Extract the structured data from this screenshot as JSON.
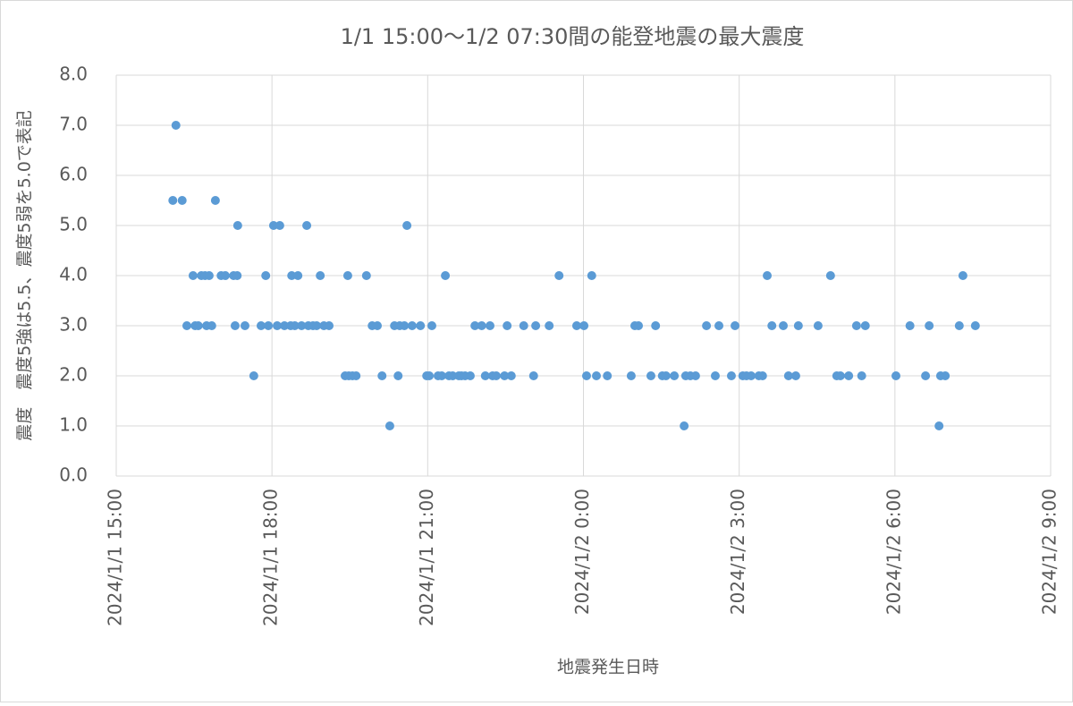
{
  "chart_data": {
    "type": "scatter",
    "title": "1/1 15:00～1/2 07:30間の能登地震の最大震度",
    "x_label": "地震発生日時",
    "y_label": "震度　震度5強は5.5、震度5弱を5.0で表記",
    "color": "#5b9bd5",
    "grid": true,
    "x": [
      16.09,
      16.15,
      16.27,
      16.36,
      16.48,
      16.52,
      16.58,
      16.64,
      16.71,
      16.74,
      16.79,
      16.84,
      16.91,
      17.02,
      17.1,
      17.26,
      17.29,
      17.33,
      17.34,
      17.48,
      17.65,
      17.79,
      17.88,
      17.93,
      18.03,
      18.1,
      18.15,
      18.24,
      18.36,
      18.38,
      18.44,
      18.5,
      18.57,
      18.67,
      18.7,
      18.79,
      18.86,
      18.93,
      19.0,
      19.1,
      19.41,
      19.46,
      19.48,
      19.55,
      19.62,
      19.82,
      19.93,
      20.03,
      20.12,
      20.27,
      20.36,
      20.43,
      20.46,
      20.55,
      20.6,
      20.7,
      20.86,
      20.98,
      21.03,
      21.08,
      21.2,
      21.27,
      21.34,
      21.41,
      21.48,
      21.6,
      21.65,
      21.72,
      21.82,
      21.91,
      22.04,
      22.11,
      22.2,
      22.25,
      22.32,
      22.48,
      22.53,
      22.61,
      22.85,
      23.04,
      23.08,
      23.34,
      23.53,
      23.87,
      24.01,
      24.06,
      24.16,
      24.25,
      24.46,
      24.92,
      24.99,
      25.06,
      25.3,
      25.39,
      25.52,
      25.59,
      25.75,
      25.94,
      25.97,
      26.06,
      26.16,
      26.37,
      26.54,
      26.61,
      26.85,
      26.92,
      27.07,
      27.14,
      27.23,
      27.38,
      27.45,
      27.54,
      27.63,
      27.85,
      27.95,
      28.09,
      28.14,
      28.52,
      28.76,
      28.88,
      28.95,
      29.11,
      29.26,
      29.36,
      29.43,
      30.02,
      30.29,
      30.59,
      30.66,
      30.85,
      30.88,
      30.97,
      31.24,
      31.31,
      31.55
    ],
    "values": [
      5.5,
      7,
      5.5,
      3,
      4,
      3,
      3,
      4,
      4,
      3,
      4,
      3,
      5.5,
      4,
      4,
      4,
      3,
      4,
      5,
      3,
      2,
      3,
      4,
      3,
      5,
      3,
      5,
      3,
      3,
      4,
      3,
      4,
      3,
      5,
      3,
      3,
      3,
      4,
      3,
      3,
      2,
      4,
      2,
      2,
      2,
      4,
      3,
      3,
      2,
      1,
      3,
      2,
      3,
      3,
      5,
      3,
      3,
      2,
      2,
      3,
      2,
      2,
      4,
      2,
      2,
      2,
      2,
      2,
      2,
      3,
      3,
      2,
      3,
      2,
      2,
      2,
      3,
      2,
      3,
      2,
      3,
      3,
      4,
      3,
      3,
      2,
      4,
      2,
      2,
      2,
      3,
      3,
      2,
      3,
      2,
      2,
      2,
      1,
      2,
      2,
      2,
      3,
      2,
      3,
      2,
      3,
      2,
      2,
      2,
      2,
      2,
      4,
      3,
      3,
      2,
      2,
      3,
      3,
      4,
      2,
      2,
      2,
      3,
      2,
      3,
      2,
      3,
      2,
      3,
      1,
      2,
      2,
      3,
      4,
      3
    ],
    "xlim": [
      15,
      33
    ],
    "xticks": [
      {
        "value": 15,
        "label": "2024/1/1 15:00"
      },
      {
        "value": 18,
        "label": "2024/1/1 18:00"
      },
      {
        "value": 21,
        "label": "2024/1/1 21:00"
      },
      {
        "value": 24,
        "label": "2024/1/2 0:00"
      },
      {
        "value": 27,
        "label": "2024/1/2 3:00"
      },
      {
        "value": 30,
        "label": "2024/1/2 6:00"
      },
      {
        "value": 33,
        "label": "2024/1/2 9:00"
      }
    ],
    "ylim": [
      0,
      8
    ],
    "yticks": [
      {
        "value": 0,
        "label": "0.0"
      },
      {
        "value": 1,
        "label": "1.0"
      },
      {
        "value": 2,
        "label": "2.0"
      },
      {
        "value": 3,
        "label": "3.0"
      },
      {
        "value": 4,
        "label": "4.0"
      },
      {
        "value": 5,
        "label": "5.0"
      },
      {
        "value": 6,
        "label": "6.0"
      },
      {
        "value": 7,
        "label": "7.0"
      },
      {
        "value": 8,
        "label": "8.0"
      }
    ]
  }
}
